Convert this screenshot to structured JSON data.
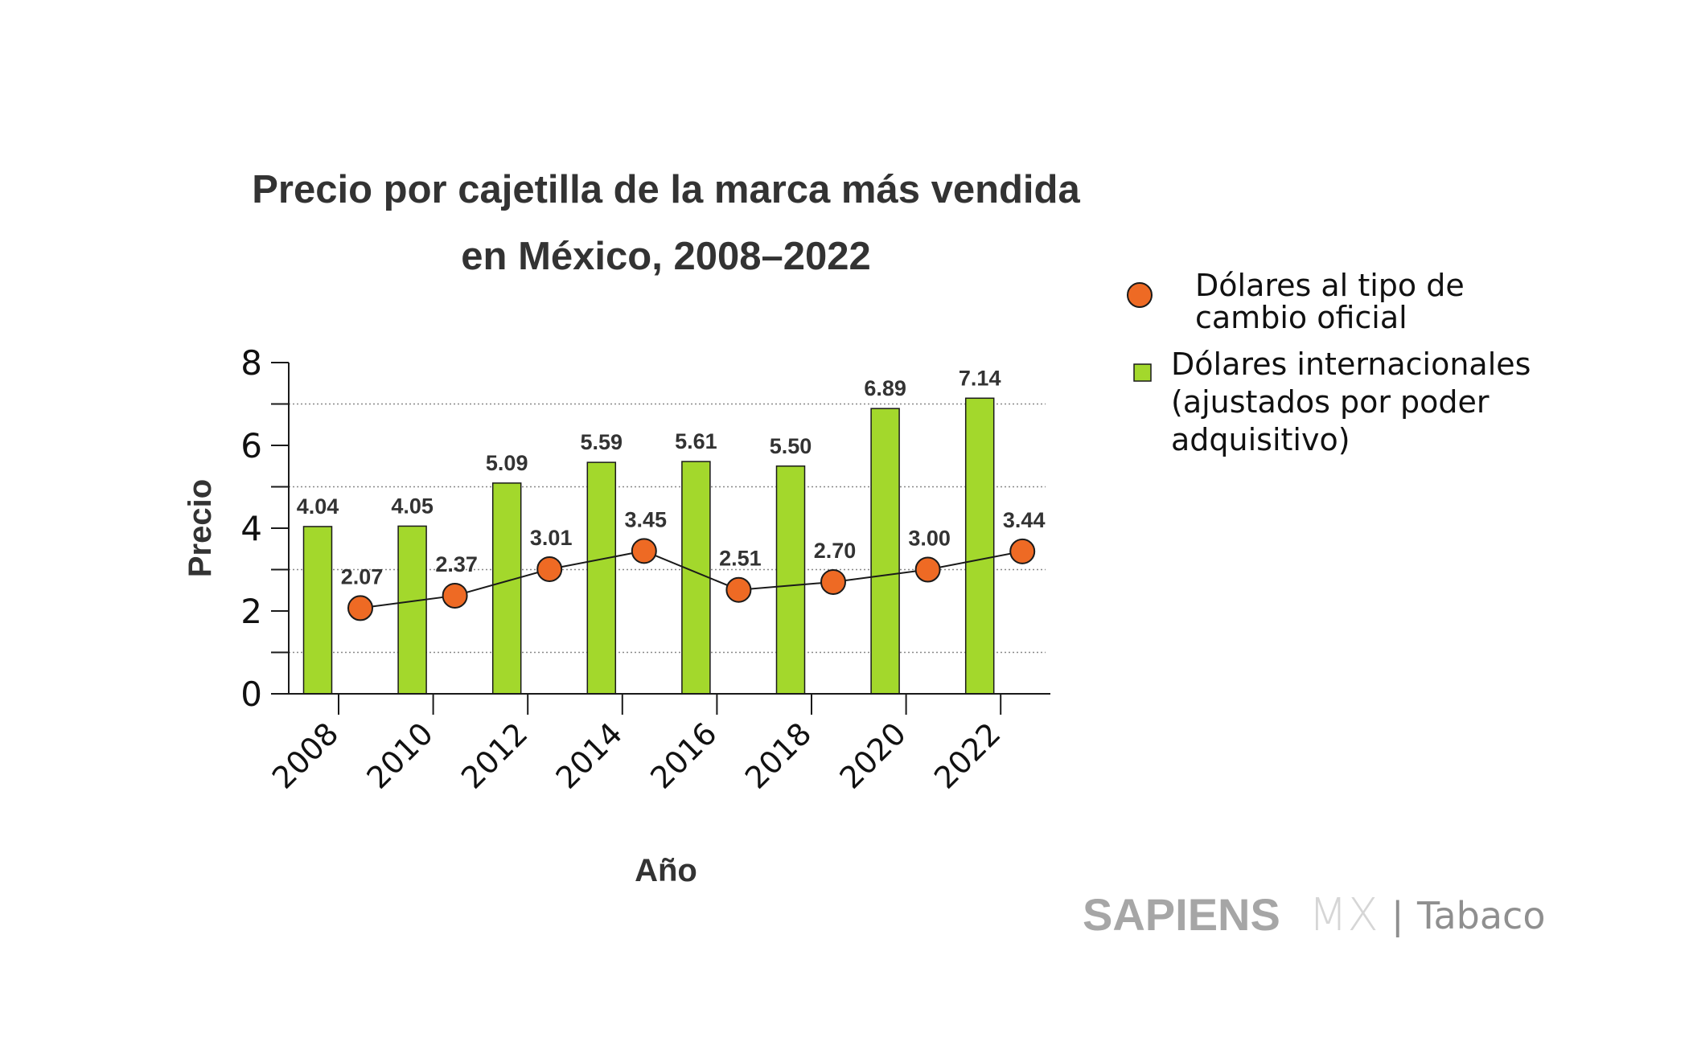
{
  "chart_data": {
    "type": "bar",
    "title": "Precio por cajetilla de la marca más vendida en México, 2008–2022",
    "title_lines": [
      "Precio por cajetilla de la marca más vendida",
      "en México, 2008–2022"
    ],
    "xlabel": "Año",
    "ylabel": "Precio",
    "categories": [
      "2008",
      "2010",
      "2012",
      "2014",
      "2016",
      "2018",
      "2020",
      "2022"
    ],
    "ylim": [
      0,
      8
    ],
    "yticks_major": [
      0,
      2,
      4,
      6,
      8
    ],
    "yticks_minor": [
      1,
      3,
      5,
      7
    ],
    "grid": "dotted horizontal at minor ticks",
    "legend_position": "right",
    "series": [
      {
        "name": "Dólares internacionales (ajustados por poder adquisitivo)",
        "legend_lines": [
          "Dólares internacionales",
          "(ajustados por poder",
          "adquisitivo)"
        ],
        "type": "bar",
        "color": "#a3d82c",
        "values": [
          4.04,
          4.05,
          5.09,
          5.59,
          5.61,
          5.5,
          6.89,
          7.14
        ],
        "labels": [
          "4.04",
          "4.05",
          "5.09",
          "5.59",
          "5.61",
          "5.50",
          "6.89",
          "7.14"
        ]
      },
      {
        "name": "Dólares al tipo de cambio oficial",
        "legend_lines": [
          "Dólares al tipo de",
          "cambio oficial"
        ],
        "type": "line",
        "color": "#ee6a24",
        "values": [
          2.07,
          2.37,
          3.01,
          3.45,
          2.51,
          2.7,
          3.0,
          3.44
        ],
        "labels": [
          "2.07",
          "2.37",
          "3.01",
          "3.45",
          "2.51",
          "2.70",
          "3.00",
          "3.44"
        ]
      }
    ]
  },
  "branding": {
    "name_bold": "SAPIENS",
    "name_light": "MX",
    "separator": "|",
    "section": "Tabaco"
  },
  "colors": {
    "axis": "#1a1a1a",
    "grid": "#888888",
    "text_dark": "#333333"
  }
}
